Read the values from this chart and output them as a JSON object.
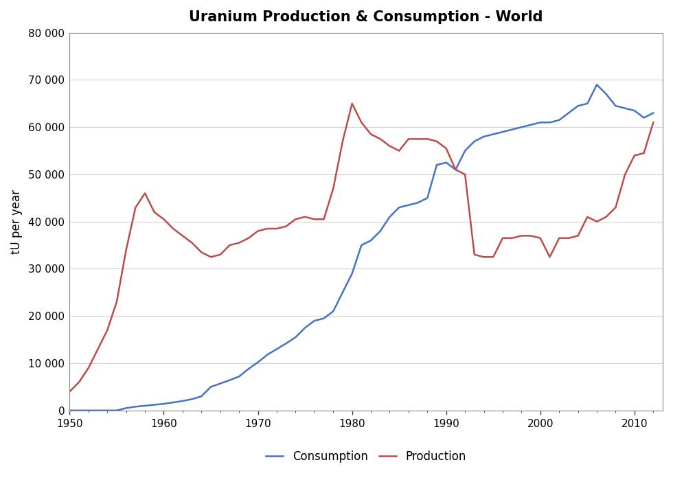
{
  "title": "Uranium Production & Consumption - World",
  "ylabel": "tU per year",
  "xlim": [
    1950,
    2013
  ],
  "ylim": [
    0,
    80000
  ],
  "yticks": [
    0,
    10000,
    20000,
    30000,
    40000,
    50000,
    60000,
    70000,
    80000
  ],
  "xticks": [
    1950,
    1960,
    1970,
    1980,
    1990,
    2000,
    2010
  ],
  "background_color": "#ffffff",
  "plot_bg_color": "#ffffff",
  "grid_color": "#d0d0d0",
  "consumption_color": "#4472C4",
  "production_color": "#BE4B48",
  "consumption_label": "Consumption",
  "production_label": "Production",
  "consumption_data": [
    [
      1950,
      0
    ],
    [
      1951,
      0
    ],
    [
      1952,
      0
    ],
    [
      1953,
      0
    ],
    [
      1954,
      0
    ],
    [
      1955,
      0
    ],
    [
      1956,
      500
    ],
    [
      1957,
      800
    ],
    [
      1958,
      1000
    ],
    [
      1959,
      1200
    ],
    [
      1960,
      1400
    ],
    [
      1961,
      1700
    ],
    [
      1962,
      2000
    ],
    [
      1963,
      2400
    ],
    [
      1964,
      3000
    ],
    [
      1965,
      5000
    ],
    [
      1966,
      5700
    ],
    [
      1967,
      6400
    ],
    [
      1968,
      7200
    ],
    [
      1969,
      8800
    ],
    [
      1970,
      10200
    ],
    [
      1971,
      11800
    ],
    [
      1972,
      13000
    ],
    [
      1973,
      14200
    ],
    [
      1974,
      15500
    ],
    [
      1975,
      17500
    ],
    [
      1976,
      19000
    ],
    [
      1977,
      19500
    ],
    [
      1978,
      21000
    ],
    [
      1979,
      25000
    ],
    [
      1980,
      29000
    ],
    [
      1981,
      35000
    ],
    [
      1982,
      36000
    ],
    [
      1983,
      38000
    ],
    [
      1984,
      41000
    ],
    [
      1985,
      43000
    ],
    [
      1986,
      43500
    ],
    [
      1987,
      44000
    ],
    [
      1988,
      45000
    ],
    [
      1989,
      52000
    ],
    [
      1990,
      52500
    ],
    [
      1991,
      51000
    ],
    [
      1992,
      55000
    ],
    [
      1993,
      57000
    ],
    [
      1994,
      58000
    ],
    [
      1995,
      58500
    ],
    [
      1996,
      59000
    ],
    [
      1997,
      59500
    ],
    [
      1998,
      60000
    ],
    [
      1999,
      60500
    ],
    [
      2000,
      61000
    ],
    [
      2001,
      61000
    ],
    [
      2002,
      61500
    ],
    [
      2003,
      63000
    ],
    [
      2004,
      64500
    ],
    [
      2005,
      65000
    ],
    [
      2006,
      69000
    ],
    [
      2007,
      67000
    ],
    [
      2008,
      64500
    ],
    [
      2009,
      64000
    ],
    [
      2010,
      63500
    ],
    [
      2011,
      62000
    ],
    [
      2012,
      63000
    ]
  ],
  "production_data": [
    [
      1950,
      4000
    ],
    [
      1951,
      6000
    ],
    [
      1952,
      9000
    ],
    [
      1953,
      13000
    ],
    [
      1954,
      17000
    ],
    [
      1955,
      23000
    ],
    [
      1956,
      34000
    ],
    [
      1957,
      43000
    ],
    [
      1958,
      46000
    ],
    [
      1959,
      42000
    ],
    [
      1960,
      40500
    ],
    [
      1961,
      38500
    ],
    [
      1962,
      37000
    ],
    [
      1963,
      35500
    ],
    [
      1964,
      33500
    ],
    [
      1965,
      32500
    ],
    [
      1966,
      33000
    ],
    [
      1967,
      35000
    ],
    [
      1968,
      35500
    ],
    [
      1969,
      36500
    ],
    [
      1970,
      38000
    ],
    [
      1971,
      38500
    ],
    [
      1972,
      38500
    ],
    [
      1973,
      39000
    ],
    [
      1974,
      40500
    ],
    [
      1975,
      41000
    ],
    [
      1976,
      40500
    ],
    [
      1977,
      40500
    ],
    [
      1978,
      47000
    ],
    [
      1979,
      57000
    ],
    [
      1980,
      65000
    ],
    [
      1981,
      61000
    ],
    [
      1982,
      58500
    ],
    [
      1983,
      57500
    ],
    [
      1984,
      56000
    ],
    [
      1985,
      55000
    ],
    [
      1986,
      57500
    ],
    [
      1987,
      57500
    ],
    [
      1988,
      57500
    ],
    [
      1989,
      57000
    ],
    [
      1990,
      55500
    ],
    [
      1991,
      51000
    ],
    [
      1992,
      50000
    ],
    [
      1993,
      33000
    ],
    [
      1994,
      32500
    ],
    [
      1995,
      32500
    ],
    [
      1996,
      36500
    ],
    [
      1997,
      36500
    ],
    [
      1998,
      37000
    ],
    [
      1999,
      37000
    ],
    [
      2000,
      36500
    ],
    [
      2001,
      32500
    ],
    [
      2002,
      36500
    ],
    [
      2003,
      36500
    ],
    [
      2004,
      37000
    ],
    [
      2005,
      41000
    ],
    [
      2006,
      40000
    ],
    [
      2007,
      41000
    ],
    [
      2008,
      43000
    ],
    [
      2009,
      50000
    ],
    [
      2010,
      54000
    ],
    [
      2011,
      54500
    ],
    [
      2012,
      61000
    ]
  ]
}
